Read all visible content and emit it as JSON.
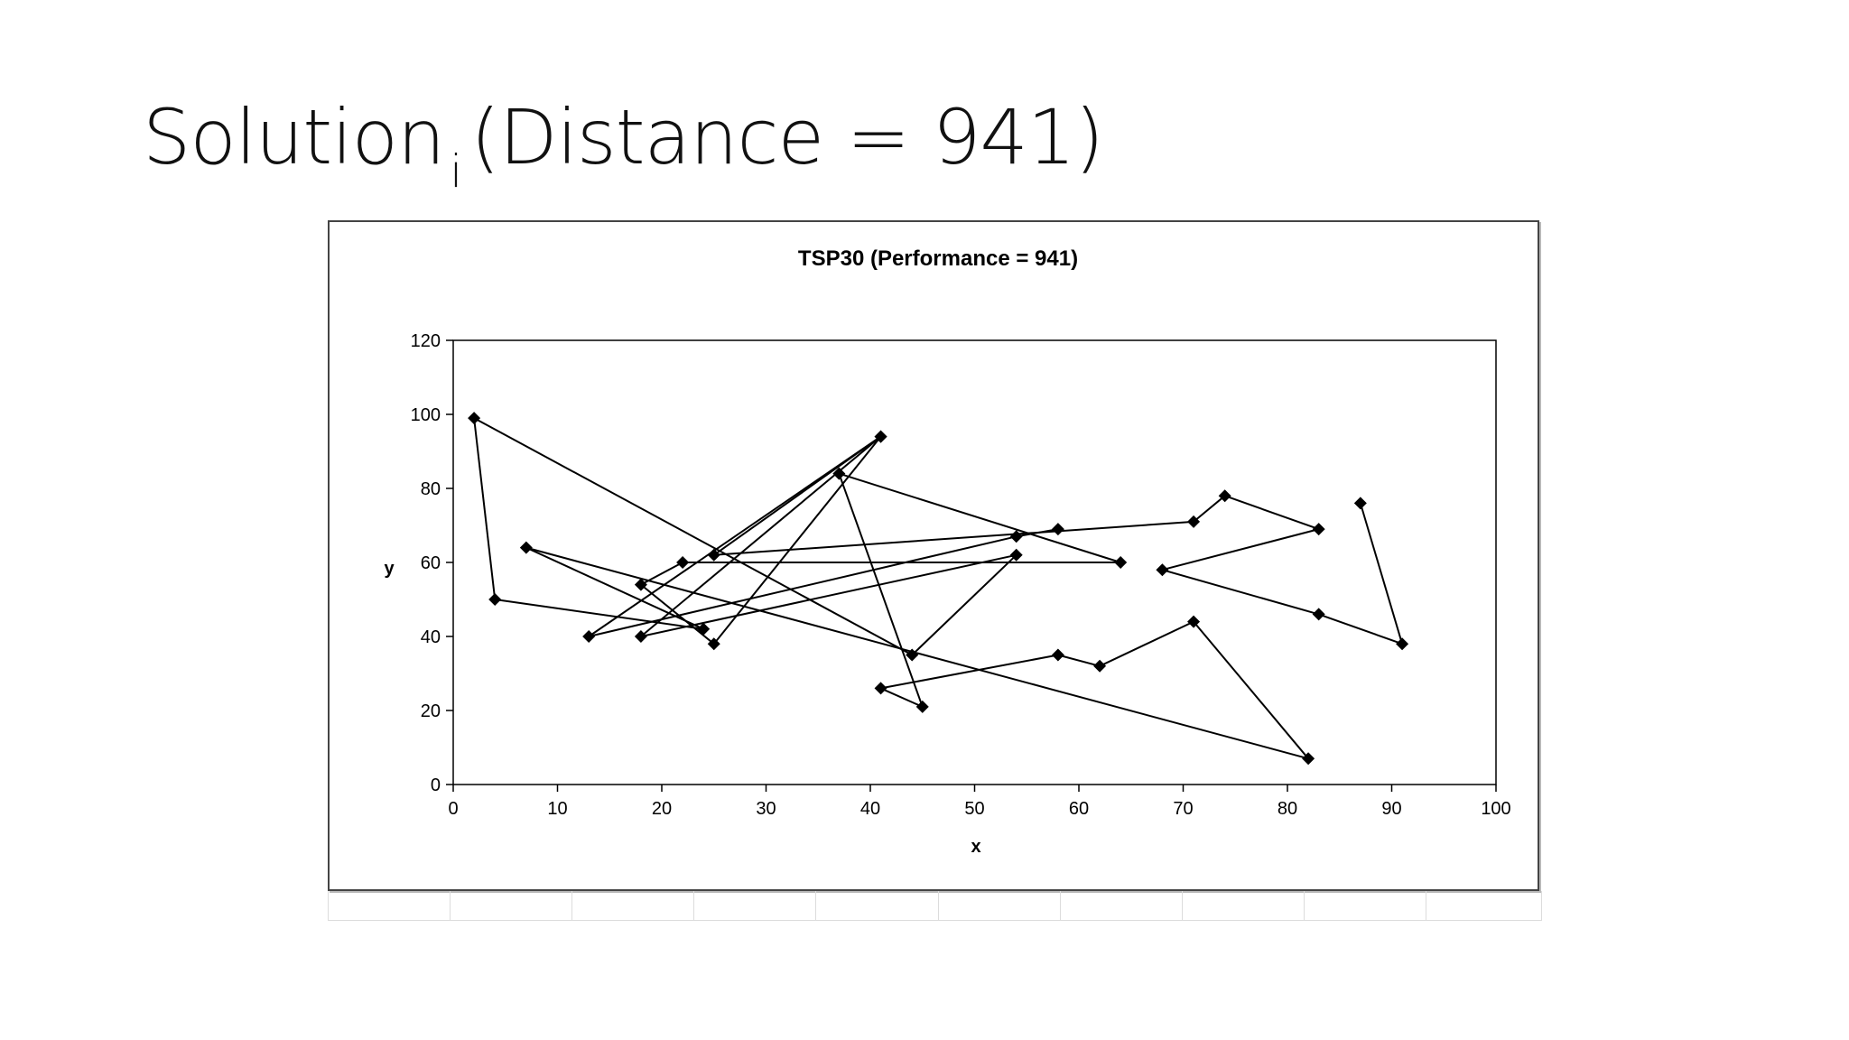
{
  "slide": {
    "title_main": "Solution",
    "title_sub": "i",
    "title_rest": "(Distance = 941)"
  },
  "chart_data": {
    "type": "line",
    "title": "TSP30 (Performance = 941)",
    "xlabel": "x",
    "ylabel": "y",
    "xlim": [
      0,
      100
    ],
    "ylim": [
      0,
      120
    ],
    "xticks": [
      0,
      10,
      20,
      30,
      40,
      50,
      60,
      70,
      80,
      90,
      100
    ],
    "yticks": [
      0,
      20,
      40,
      60,
      80,
      100,
      120
    ],
    "marker": "diamond",
    "color": "#000000",
    "grid": false,
    "legend": "none",
    "route": [
      {
        "x": 87,
        "y": 76
      },
      {
        "x": 91,
        "y": 38
      },
      {
        "x": 83,
        "y": 46
      },
      {
        "x": 68,
        "y": 58
      },
      {
        "x": 83,
        "y": 69
      },
      {
        "x": 74,
        "y": 78
      },
      {
        "x": 71,
        "y": 71
      },
      {
        "x": 25,
        "y": 62
      },
      {
        "x": 41,
        "y": 94
      },
      {
        "x": 18,
        "y": 40
      },
      {
        "x": 54,
        "y": 62
      },
      {
        "x": 44,
        "y": 35
      },
      {
        "x": 2,
        "y": 99
      },
      {
        "x": 4,
        "y": 50
      },
      {
        "x": 24,
        "y": 42
      },
      {
        "x": 7,
        "y": 64
      },
      {
        "x": 82,
        "y": 7
      },
      {
        "x": 71,
        "y": 44
      },
      {
        "x": 62,
        "y": 32
      },
      {
        "x": 58,
        "y": 35
      },
      {
        "x": 41,
        "y": 26
      },
      {
        "x": 45,
        "y": 21
      },
      {
        "x": 37,
        "y": 84
      },
      {
        "x": 64,
        "y": 60
      },
      {
        "x": 22,
        "y": 60
      },
      {
        "x": 18,
        "y": 54
      },
      {
        "x": 25,
        "y": 38
      },
      {
        "x": 41,
        "y": 94
      },
      {
        "x": 13,
        "y": 40
      },
      {
        "x": 54,
        "y": 67
      },
      {
        "x": 58,
        "y": 69
      }
    ]
  }
}
